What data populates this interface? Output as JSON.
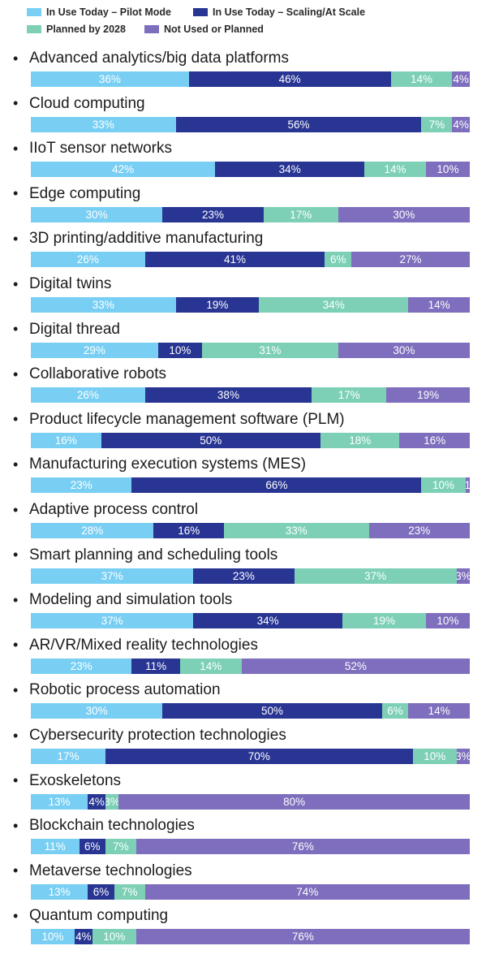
{
  "colors": {
    "pilot": "#79cff3",
    "scale": "#283593",
    "planned": "#7dd0b6",
    "notused": "#7e6ebd",
    "label_text": "#1c1c1c"
  },
  "chart_data": {
    "type": "bar",
    "orientation": "horizontal",
    "stacked": true,
    "percent": true,
    "legend_position": "top",
    "series": [
      {
        "name": "In Use Today – Pilot Mode",
        "key": "pilot"
      },
      {
        "name": "In Use Today – Scaling/At Scale",
        "key": "scale"
      },
      {
        "name": "Planned by 2028",
        "key": "planned"
      },
      {
        "name": "Not Used or Planned",
        "key": "notused"
      }
    ],
    "rows": [
      {
        "category": "Advanced analytics/big data platforms",
        "values": [
          36,
          46,
          14,
          4
        ],
        "labels": [
          "36%",
          "46%",
          "14%",
          "4%"
        ]
      },
      {
        "category": "Cloud computing",
        "values": [
          33,
          56,
          7,
          4
        ],
        "labels": [
          "33%",
          "56%",
          "7%",
          "4%"
        ]
      },
      {
        "category": "IIoT sensor networks",
        "values": [
          42,
          34,
          14,
          10
        ],
        "labels": [
          "42%",
          "34%",
          "14%",
          "10%"
        ]
      },
      {
        "category": "Edge computing",
        "values": [
          30,
          23,
          17,
          30
        ],
        "labels": [
          "30%",
          "23%",
          "17%",
          "30%"
        ]
      },
      {
        "category": "3D printing/additive manufacturing",
        "values": [
          26,
          41,
          6,
          27
        ],
        "labels": [
          "26%",
          "41%",
          "6%",
          "27%"
        ]
      },
      {
        "category": "Digital twins",
        "values": [
          33,
          19,
          34,
          14
        ],
        "labels": [
          "33%",
          "19%",
          "34%",
          "14%"
        ]
      },
      {
        "category": "Digital thread",
        "values": [
          29,
          10,
          31,
          30
        ],
        "labels": [
          "29%",
          "10%",
          "31%",
          "30%"
        ]
      },
      {
        "category": "Collaborative robots",
        "values": [
          26,
          38,
          17,
          19
        ],
        "labels": [
          "26%",
          "38%",
          "17%",
          "19%"
        ]
      },
      {
        "category": "Product lifecycle management software (PLM)",
        "values": [
          16,
          50,
          18,
          16
        ],
        "labels": [
          "16%",
          "50%",
          "18%",
          "16%"
        ]
      },
      {
        "category": "Manufacturing execution systems (MES)",
        "values": [
          23,
          66,
          10,
          1
        ],
        "labels": [
          "23%",
          "66%",
          "10%",
          "1"
        ]
      },
      {
        "category": "Adaptive process control",
        "values": [
          28,
          16,
          33,
          23
        ],
        "labels": [
          "28%",
          "16%",
          "33%",
          "23%"
        ]
      },
      {
        "category": "Smart planning and scheduling tools",
        "values": [
          37,
          23,
          37,
          3
        ],
        "labels": [
          "37%",
          "23%",
          "37%",
          "3%"
        ]
      },
      {
        "category": "Modeling and simulation tools",
        "values": [
          37,
          34,
          19,
          10
        ],
        "labels": [
          "37%",
          "34%",
          "19%",
          "10%"
        ]
      },
      {
        "category": "AR/VR/Mixed reality technologies",
        "values": [
          23,
          11,
          14,
          52
        ],
        "labels": [
          "23%",
          "11%",
          "14%",
          "52%"
        ]
      },
      {
        "category": "Robotic process automation",
        "values": [
          30,
          50,
          6,
          14
        ],
        "labels": [
          "30%",
          "50%",
          "6%",
          "14%"
        ]
      },
      {
        "category": "Cybersecurity protection technologies",
        "values": [
          17,
          70,
          10,
          3
        ],
        "labels": [
          "17%",
          "70%",
          "10%",
          "3%"
        ]
      },
      {
        "category": "Exoskeletons",
        "values": [
          13,
          4,
          3,
          80
        ],
        "labels": [
          "13%",
          "4%",
          "3%",
          "80%"
        ]
      },
      {
        "category": "Blockchain technologies",
        "values": [
          11,
          6,
          7,
          76
        ],
        "labels": [
          "11%",
          "6%",
          "7%",
          "76%"
        ]
      },
      {
        "category": "Metaverse technologies",
        "values": [
          13,
          6,
          7,
          74
        ],
        "labels": [
          "13%",
          "6%",
          "7%",
          "74%"
        ]
      },
      {
        "category": "Quantum computing",
        "values": [
          10,
          4,
          10,
          76
        ],
        "labels": [
          "10%",
          "4%",
          "10%",
          "76%"
        ]
      }
    ]
  }
}
